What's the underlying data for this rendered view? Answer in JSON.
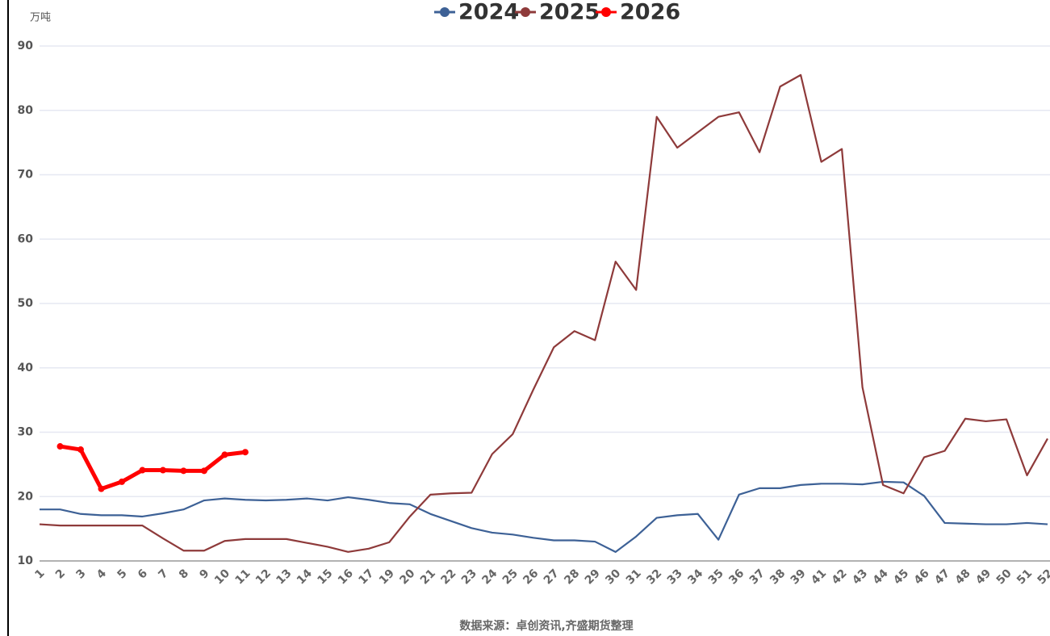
{
  "chart_data": {
    "type": "line",
    "y_label": "万吨",
    "source": "数据来源：卓创资讯,齐盛期货整理",
    "categories": [
      "1",
      "2",
      "3",
      "4",
      "5",
      "6",
      "7",
      "8",
      "9",
      "10",
      "11",
      "12",
      "13",
      "14",
      "15",
      "16",
      "17",
      "19",
      "20",
      "21",
      "22",
      "23",
      "24",
      "25",
      "26",
      "27",
      "28",
      "29",
      "30",
      "31",
      "32",
      "33",
      "34",
      "35",
      "36",
      "37",
      "38",
      "39",
      "41",
      "42",
      "43",
      "44",
      "45",
      "46",
      "47",
      "48",
      "49",
      "50",
      "51",
      "52"
    ],
    "ylim": [
      10,
      90
    ],
    "yticks": [
      10,
      20,
      30,
      40,
      50,
      60,
      70,
      80,
      90
    ],
    "grid": true,
    "legend": "top",
    "series": [
      {
        "name": "2024",
        "color": "#3d6196",
        "values": [
          18,
          18,
          17.3,
          17.1,
          17.1,
          16.9,
          17.4,
          18,
          19.4,
          19.7,
          19.5,
          19.4,
          19.5,
          19.7,
          19.4,
          19.9,
          19.5,
          19,
          18.8,
          17.3,
          16.2,
          15.1,
          14.4,
          14.1,
          13.6,
          13.2,
          13.2,
          13,
          11.4,
          13.8,
          16.7,
          17.1,
          17.3,
          13.3,
          20.3,
          21.3,
          21.3,
          21.8,
          22,
          22,
          21.9,
          22.3,
          22.2,
          20.1,
          15.9,
          15.8,
          15.7,
          15.7,
          15.9,
          15.7
        ]
      },
      {
        "name": "2025",
        "color": "#8e3a3a",
        "values": [
          15.7,
          15.5,
          15.5,
          15.5,
          15.5,
          15.5,
          13.5,
          11.6,
          11.6,
          13.1,
          13.4,
          13.4,
          13.4,
          12.8,
          12.2,
          11.4,
          11.9,
          12.9,
          16.9,
          20.3,
          20.5,
          20.6,
          26.6,
          29.7,
          36.6,
          43.2,
          45.7,
          44.3,
          56.5,
          52.1,
          79,
          74.2,
          76.6,
          79,
          79.7,
          73.5,
          83.7,
          85.5,
          72,
          74,
          37,
          21.8,
          20.5,
          26.1,
          27.1,
          32.1,
          31.7,
          32,
          23.3,
          29
        ]
      },
      {
        "name": "2026",
        "color": "#ff0000",
        "values": [
          null,
          27.8,
          27.3,
          21.2,
          22.3,
          24.1,
          24.1,
          24,
          24,
          26.5,
          26.9,
          null,
          null,
          null,
          null,
          null,
          null,
          null,
          null,
          null,
          null,
          null,
          null,
          null,
          null,
          null,
          null,
          null,
          null,
          null,
          null,
          null,
          null,
          null,
          null,
          null,
          null,
          null,
          null,
          null,
          null,
          null,
          null,
          null,
          null,
          null,
          null,
          null,
          null,
          null
        ]
      }
    ]
  }
}
